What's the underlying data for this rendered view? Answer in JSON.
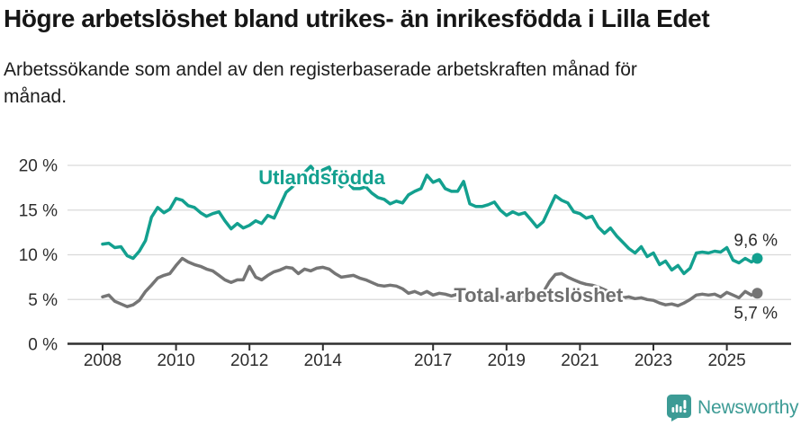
{
  "header": {
    "title": "Högre arbetslöshet bland utrikes- än inrikesfödda i Lilla Edet",
    "subtitle_line1": "Arbetssökande som andel av den registerbaserade arbetskraften månad för",
    "subtitle_line2": "månad."
  },
  "chart_data": {
    "type": "line",
    "unit": "%",
    "grid": "horizontal",
    "legend_position": "inline-labels",
    "ylim": [
      0,
      21.5
    ],
    "yticks": [
      0,
      5,
      10,
      15,
      20
    ],
    "ytick_labels": [
      "0 %",
      "5 %",
      "10 %",
      "15 %",
      "20 %"
    ],
    "xticks": [
      2008,
      2010,
      2012,
      2014,
      2017,
      2019,
      2021,
      2023,
      2025
    ],
    "xtick_labels": [
      "2008",
      "2010",
      "2012",
      "2014",
      "2017",
      "2019",
      "2021",
      "2023",
      "2025"
    ],
    "x": [
      2008.0,
      2008.17,
      2008.33,
      2008.5,
      2008.67,
      2008.83,
      2009.0,
      2009.17,
      2009.33,
      2009.5,
      2009.67,
      2009.83,
      2010.0,
      2010.17,
      2010.33,
      2010.5,
      2010.67,
      2010.83,
      2011.0,
      2011.17,
      2011.33,
      2011.5,
      2011.67,
      2011.83,
      2012.0,
      2012.17,
      2012.33,
      2012.5,
      2012.67,
      2012.83,
      2013.0,
      2013.17,
      2013.33,
      2013.5,
      2013.67,
      2013.83,
      2014.0,
      2014.17,
      2014.33,
      2014.5,
      2014.67,
      2014.83,
      2015.0,
      2015.17,
      2015.33,
      2015.5,
      2015.67,
      2015.83,
      2016.0,
      2016.17,
      2016.33,
      2016.5,
      2016.67,
      2016.83,
      2017.0,
      2017.17,
      2017.33,
      2017.5,
      2017.67,
      2017.83,
      2018.0,
      2018.17,
      2018.33,
      2018.5,
      2018.67,
      2018.83,
      2019.0,
      2019.17,
      2019.33,
      2019.5,
      2019.67,
      2019.83,
      2020.0,
      2020.17,
      2020.33,
      2020.5,
      2020.67,
      2020.83,
      2021.0,
      2021.17,
      2021.33,
      2021.5,
      2021.67,
      2021.83,
      2022.0,
      2022.17,
      2022.33,
      2022.5,
      2022.67,
      2022.83,
      2023.0,
      2023.17,
      2023.33,
      2023.5,
      2023.67,
      2023.83,
      2024.0,
      2024.17,
      2024.33,
      2024.5,
      2024.67,
      2024.83,
      2025.0,
      2025.17,
      2025.33,
      2025.5,
      2025.67,
      2025.83
    ],
    "series": [
      {
        "name": "Utlandsfödda",
        "color": "#13A08F",
        "end_label": "9,6 %",
        "values": [
          11.2,
          11.3,
          10.8,
          10.9,
          9.9,
          9.6,
          10.4,
          11.6,
          14.2,
          15.3,
          14.7,
          15.1,
          16.3,
          16.1,
          15.5,
          15.3,
          14.7,
          14.3,
          14.6,
          14.8,
          13.8,
          12.9,
          13.5,
          13.0,
          13.3,
          13.8,
          13.5,
          14.4,
          14.1,
          15.5,
          17.0,
          17.6,
          18.3,
          19.2,
          19.9,
          19.1,
          19.5,
          19.8,
          18.3,
          17.6,
          18.1,
          17.4,
          17.4,
          17.6,
          16.9,
          16.4,
          16.2,
          15.7,
          16.0,
          15.8,
          16.7,
          17.1,
          17.4,
          18.9,
          18.1,
          18.4,
          17.4,
          17.1,
          17.1,
          18.2,
          15.7,
          15.4,
          15.4,
          15.6,
          15.9,
          15.0,
          14.4,
          14.8,
          14.5,
          14.7,
          13.9,
          13.1,
          13.7,
          15.2,
          16.6,
          16.1,
          15.8,
          14.8,
          14.6,
          14.1,
          14.3,
          13.1,
          12.4,
          13.0,
          12.1,
          11.4,
          10.7,
          10.2,
          10.9,
          9.8,
          10.2,
          8.9,
          9.3,
          8.3,
          8.8,
          7.9,
          8.5,
          10.2,
          10.3,
          10.2,
          10.4,
          10.3,
          10.8,
          9.4,
          9.1,
          9.6,
          9.2,
          9.6
        ]
      },
      {
        "name": "Total arbetslöshet",
        "color": "#757575",
        "end_label": "5,7 %",
        "values": [
          5.3,
          5.5,
          4.8,
          4.5,
          4.2,
          4.4,
          4.9,
          5.9,
          6.6,
          7.4,
          7.7,
          7.9,
          8.8,
          9.6,
          9.2,
          8.9,
          8.7,
          8.4,
          8.2,
          7.7,
          7.2,
          6.9,
          7.2,
          7.2,
          8.7,
          7.5,
          7.2,
          7.7,
          8.1,
          8.3,
          8.6,
          8.5,
          7.9,
          8.4,
          8.2,
          8.5,
          8.6,
          8.4,
          7.9,
          7.5,
          7.6,
          7.7,
          7.4,
          7.2,
          6.9,
          6.6,
          6.5,
          6.6,
          6.5,
          6.2,
          5.7,
          5.9,
          5.6,
          5.9,
          5.5,
          5.7,
          5.6,
          5.4,
          5.6,
          5.5,
          5.4,
          5.5,
          5.3,
          5.4,
          5.2,
          5.3,
          5.2,
          5.3,
          5.2,
          5.4,
          5.3,
          5.5,
          5.8,
          7.0,
          7.8,
          7.9,
          7.5,
          7.2,
          6.9,
          6.7,
          6.6,
          6.4,
          6.1,
          5.8,
          5.6,
          5.2,
          5.3,
          5.1,
          5.2,
          5.0,
          4.9,
          4.6,
          4.4,
          4.5,
          4.3,
          4.6,
          5.0,
          5.5,
          5.6,
          5.5,
          5.6,
          5.3,
          5.8,
          5.5,
          5.2,
          5.9,
          5.5,
          5.7
        ]
      }
    ],
    "series_labels": [
      {
        "text": "Utlandsfödda",
        "x": 2013.97,
        "y": 18.7,
        "color": "#13A08F"
      },
      {
        "text": "Total arbetslöshet",
        "x": 2019.87,
        "y": 5.55,
        "color": "#6E6E6E"
      }
    ]
  },
  "brand": {
    "name": "Newsworthy",
    "color": "#3C9B95",
    "icon": "speech-bubble-bar-chart-icon"
  }
}
